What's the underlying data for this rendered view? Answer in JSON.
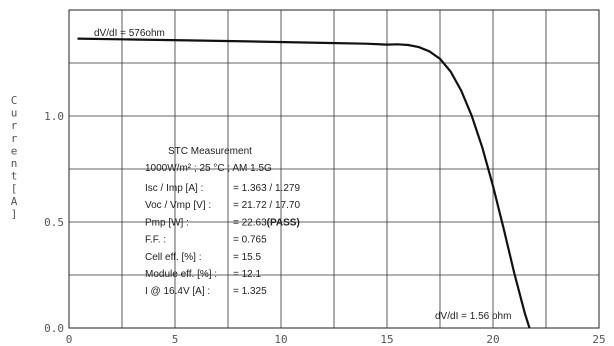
{
  "chart_data": {
    "type": "line",
    "xlim": [
      0,
      25
    ],
    "ylim": [
      0.0,
      1.5
    ],
    "x_ticks": [
      "0",
      "5",
      "10",
      "15",
      "20",
      "25"
    ],
    "y_ticks": [
      "0.0",
      "0.5",
      "1.0"
    ],
    "ylabel": "Current[A]",
    "grid": true,
    "line_color": "#111111",
    "series": [
      {
        "x": [
          0.4,
          3,
          6,
          9,
          12,
          14,
          15,
          15.5,
          16,
          16.5,
          17,
          17.5,
          18,
          18.5,
          19,
          19.5,
          20,
          20.5,
          21,
          21.5,
          21.72
        ],
        "y": [
          1.365,
          1.361,
          1.356,
          1.351,
          1.345,
          1.341,
          1.337,
          1.338,
          1.335,
          1.325,
          1.305,
          1.27,
          1.21,
          1.12,
          1.0,
          0.85,
          0.67,
          0.47,
          0.26,
          0.07,
          0.0
        ]
      }
    ],
    "annotations": {
      "top_left": "dV/dI = 576ohm",
      "bottom_right": "dV/dI = 1.56 ohm"
    },
    "info_box": {
      "title": "STC Measurement",
      "conditions": "1000W/m² ; 25 °C ; AM 1.5G",
      "rows": [
        {
          "label": "Isc / Imp [A] :",
          "value": "= 1.363 / 1.279",
          "suffix": ""
        },
        {
          "label": "Voc / Vmp [V] :",
          "value": "= 21.72 / 17.70",
          "suffix": ""
        },
        {
          "label": "Pmp [W] :",
          "value": "= 22.63",
          "suffix": "(PASS)"
        },
        {
          "label": "F.F. :",
          "value": "= 0.765",
          "suffix": ""
        },
        {
          "label": "Cell eff. [%] :",
          "value": "= 15.5",
          "suffix": ""
        },
        {
          "label": "Module eff. [%] :",
          "value": "= 12.1",
          "suffix": ""
        },
        {
          "label": "I @ 16.4V [A] :",
          "value": "= 1.325",
          "suffix": ""
        }
      ]
    }
  }
}
